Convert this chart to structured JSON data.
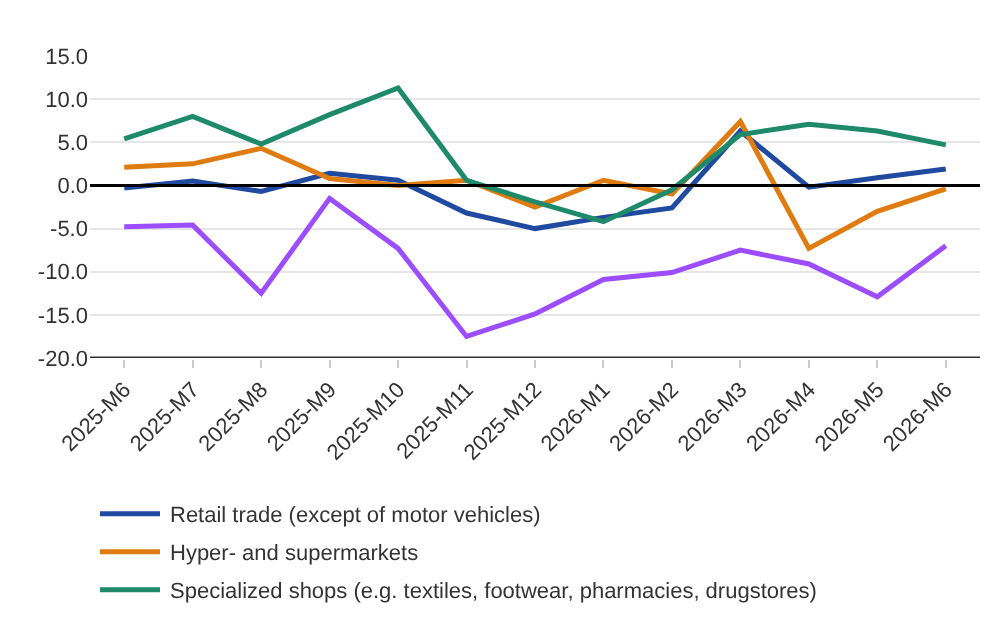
{
  "chart_data": {
    "type": "line",
    "categories": [
      "2025-M6",
      "2025-M7",
      "2025-M8",
      "2025-M9",
      "2025-M10",
      "2025-M11",
      "2025-M12",
      "2026-M1",
      "2026-M2",
      "2026-M3",
      "2026-M4",
      "2026-M5",
      "2026-M6"
    ],
    "series": [
      {
        "name": "Retail trade (except of motor vehicles)",
        "color": "#1f4aa0",
        "values": [
          -0.3,
          0.5,
          -0.7,
          1.4,
          0.6,
          -3.2,
          -5.0,
          -3.7,
          -2.6,
          6.3,
          -0.2,
          0.9,
          1.9
        ]
      },
      {
        "name": "Hyper- and supermarkets",
        "color": "#e07b10",
        "values": [
          2.1,
          2.5,
          4.3,
          0.8,
          0.0,
          0.6,
          -2.5,
          0.6,
          -1.0,
          7.4,
          -7.3,
          -3.0,
          -0.4
        ]
      },
      {
        "name": "Specialized shops (e.g. textiles, footwear, pharmacies, drugstores)",
        "color": "#1e8a6a",
        "values": [
          5.4,
          8.0,
          4.8,
          8.2,
          11.3,
          0.6,
          -1.9,
          -4.2,
          -0.5,
          5.9,
          7.1,
          6.3,
          4.7
        ]
      },
      {
        "color": "#9b4dff",
        "values": [
          -4.8,
          -4.6,
          -12.5,
          -1.5,
          -7.3,
          -17.5,
          -14.9,
          -10.9,
          -10.1,
          -7.5,
          -9.1,
          -12.9,
          -7.0
        ]
      }
    ],
    "ylim": [
      -20,
      15
    ],
    "yticks": [
      {
        "value": -20,
        "label": "-20.0"
      },
      {
        "value": -15,
        "label": "-15.0"
      },
      {
        "value": -10,
        "label": "-10.0"
      },
      {
        "value": -5,
        "label": "-5.0"
      },
      {
        "value": 0,
        "label": "0.0"
      },
      {
        "value": 5,
        "label": "5.0"
      },
      {
        "value": 10,
        "label": "10.0"
      },
      {
        "value": 15,
        "label": "15.0"
      }
    ],
    "ref_lines": [
      {
        "axis": "y",
        "value": 0,
        "color": "#000000"
      }
    ],
    "grid": "y",
    "legend": "bottom",
    "marker": "none",
    "line_style": "solid"
  }
}
